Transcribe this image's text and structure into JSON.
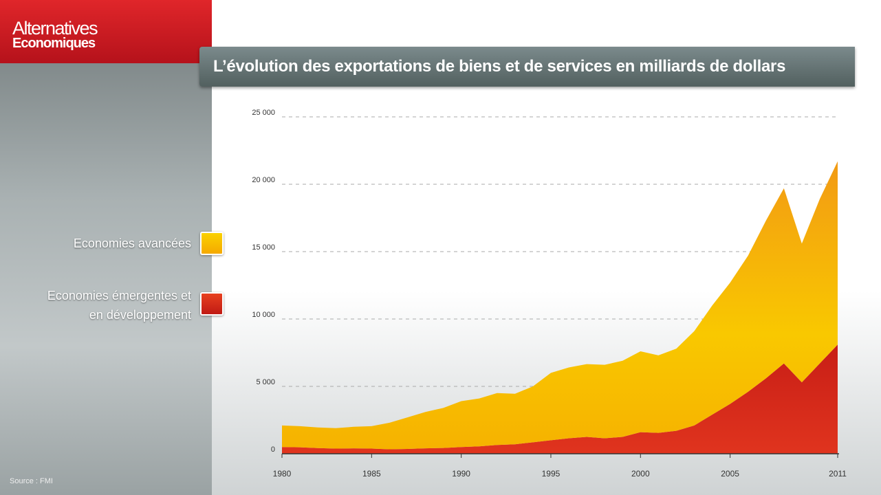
{
  "brand": {
    "line1": "Alternatives",
    "line2": "Economiques"
  },
  "source": "Source : FMI",
  "chart_data": {
    "type": "stacked_area",
    "title": "L’évolution des exportations de biens et de services en milliards de dollars",
    "x": [
      1980,
      1981,
      1982,
      1983,
      1984,
      1985,
      1986,
      1987,
      1988,
      1989,
      1990,
      1991,
      1992,
      1993,
      1994,
      1995,
      1996,
      1997,
      1998,
      1999,
      2000,
      2001,
      2002,
      2003,
      2004,
      2005,
      2006,
      2007,
      2008,
      2009,
      2010,
      2011
    ],
    "series": [
      {
        "name": "Economies émergentes et en développement",
        "color": "#d52a1c",
        "values": [
          500,
          480,
          420,
          380,
          400,
          380,
          330,
          360,
          400,
          430,
          500,
          550,
          650,
          700,
          850,
          1000,
          1150,
          1250,
          1150,
          1250,
          1600,
          1550,
          1700,
          2100,
          2900,
          3700,
          4600,
          5600,
          6700,
          5300,
          6700,
          8100
        ]
      },
      {
        "name": "Economies avancées",
        "color": "#f8c400",
        "values": [
          1600,
          1570,
          1530,
          1520,
          1600,
          1670,
          1970,
          2340,
          2700,
          2970,
          3400,
          3550,
          3850,
          3750,
          4150,
          5000,
          5250,
          5400,
          5450,
          5650,
          6000,
          5750,
          6100,
          7000,
          8100,
          9000,
          10100,
          11700,
          13000,
          10300,
          12200,
          13600
        ]
      }
    ],
    "xlim": [
      1980,
      2011
    ],
    "xticks": [
      1980,
      1985,
      1990,
      1995,
      2000,
      2005,
      2011
    ],
    "ylim": [
      0,
      25000
    ],
    "yticks": [
      0,
      {
        "value": 5000,
        "label": "5 000"
      },
      {
        "value": 10000,
        "label": "10 000"
      },
      {
        "value": 15000,
        "label": "15 000"
      },
      {
        "value": 20000,
        "label": "20 000"
      },
      {
        "value": 25000,
        "label": "25 000"
      }
    ],
    "grid": true
  }
}
